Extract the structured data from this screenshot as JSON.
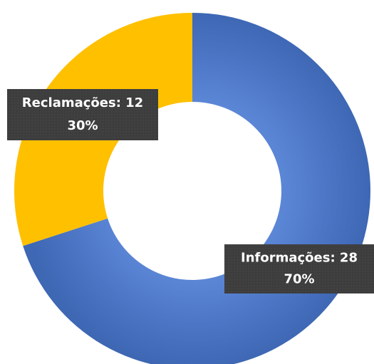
{
  "chart_data": {
    "type": "donut",
    "values": [
      28,
      12
    ],
    "value_labels": [
      "Informações: 28",
      "Reclamações: 12"
    ],
    "percent_labels": [
      "70%",
      "30%"
    ],
    "colors": [
      "#4472c4",
      "#ffc000"
    ]
  }
}
